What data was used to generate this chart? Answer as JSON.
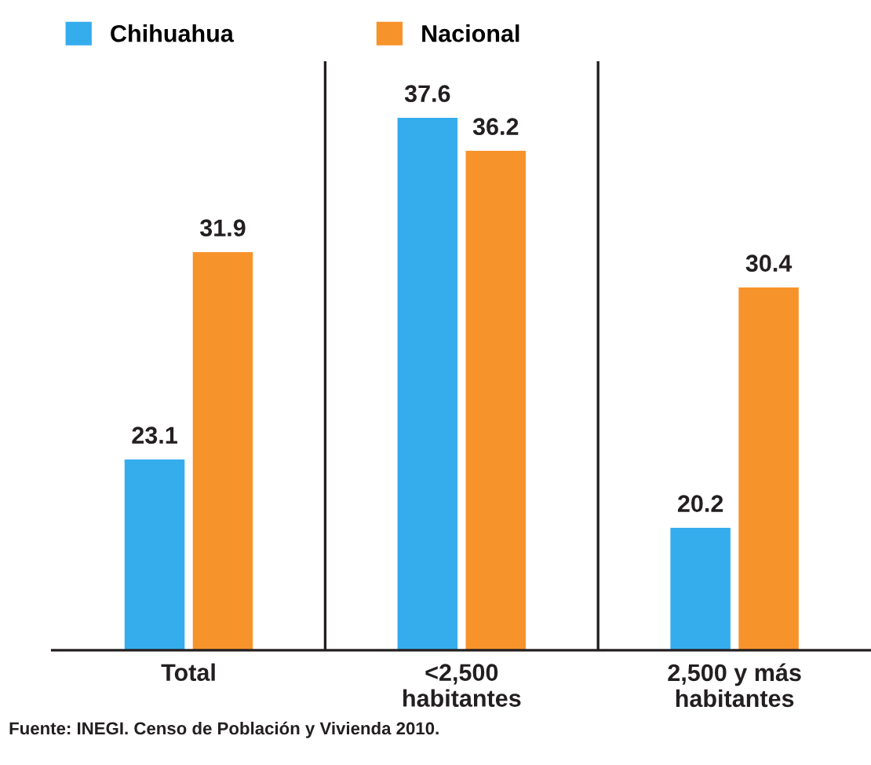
{
  "chart_data": {
    "type": "bar",
    "categories": [
      "Total",
      "<2,500\nhabitantes",
      "2,500 y más\nhabitantes"
    ],
    "series": [
      {
        "name": "Chihuahua",
        "color": "#35aded",
        "values": [
          23.1,
          37.6,
          20.2
        ]
      },
      {
        "name": "Nacional",
        "color": "#f7932b",
        "values": [
          31.9,
          36.2,
          30.4
        ]
      }
    ],
    "ylim": [
      15,
      40
    ],
    "tick_labels": "x",
    "data_labels": true,
    "grid": "x",
    "legend": "top left",
    "annotations": [
      "Fuente: INEGI. Censo de Población y Vivienda 2010."
    ]
  }
}
